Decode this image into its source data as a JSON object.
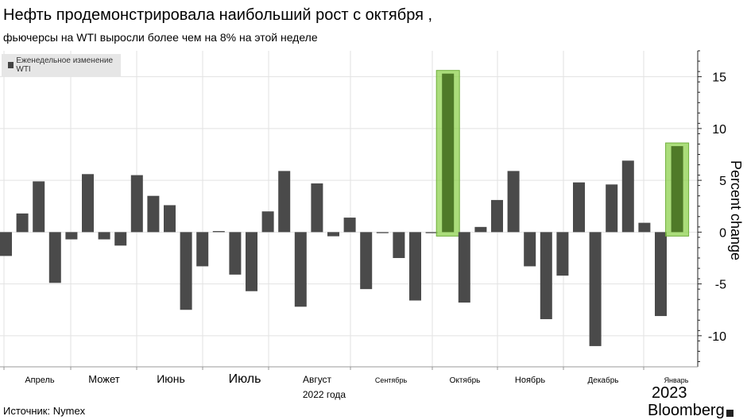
{
  "title": "Нефть продемонстрировала наибольший рост с октября ,",
  "subtitle": "фьючерсы на WTI выросли более чем на 8% на этой неделе",
  "source": "Источник: Nymex",
  "brand": "Bloomberg",
  "colors": {
    "bar": "#4a4a4a",
    "highlight_fill": "#8fd14f",
    "highlight_bar": "#4f7a28"
  },
  "chart_data": {
    "type": "bar",
    "ylabel": "Percent change",
    "ylim": [
      -13,
      17.5
    ],
    "yticks": [
      15,
      10,
      5,
      0,
      -5,
      -10
    ],
    "grid": true,
    "legend": {
      "label": "Еженедельное изменение WTI",
      "position": "top-left"
    },
    "series": [
      {
        "name": "Еженедельное изменение WTI",
        "values": [
          -2.3,
          1.8,
          4.9,
          -4.9,
          -0.7,
          5.6,
          -0.7,
          -1.3,
          5.5,
          3.5,
          2.6,
          -7.5,
          -3.3,
          0.1,
          -4.1,
          -5.7,
          2.0,
          5.9,
          -7.2,
          4.7,
          -0.4,
          1.4,
          -5.5,
          -0.1,
          -2.5,
          -6.6,
          -0.1,
          15.3,
          -6.8,
          0.5,
          3.1,
          5.9,
          -3.3,
          -8.4,
          -4.2,
          4.8,
          -11.0,
          4.6,
          6.9,
          0.9,
          -8.1,
          8.3
        ]
      }
    ],
    "highlighted_indices": [
      27,
      41
    ],
    "month_labels": [
      "Апрель",
      "Может",
      "Июнь",
      "Июль",
      "Август",
      "Сентябрь",
      "Октябрь",
      "Ноябрь",
      "Декабрь",
      "Январь"
    ],
    "year_labels": [
      "2022 года",
      "2023"
    ]
  }
}
